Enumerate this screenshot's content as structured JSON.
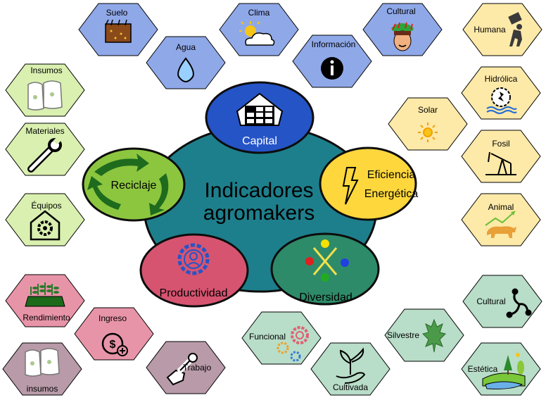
{
  "center": {
    "line1": "Indicadores",
    "line2": "agromakers",
    "color": "#1e7f8c"
  },
  "pillars": {
    "capital": {
      "label": "Capital",
      "color": "#2554c7",
      "icon": "warehouse-icon"
    },
    "eficiencia": {
      "line1": "Eficiencia",
      "line2": "Energética",
      "color": "#fdd73c",
      "icon": "lightning-icon"
    },
    "diversidad": {
      "label": "Diversidad",
      "color": "#2e8b6a",
      "icon": "diversity-icon"
    },
    "productividad": {
      "label": "Productividad",
      "color": "#d65470",
      "icon": "gear-person-icon"
    },
    "reciclaje": {
      "label": "Reciclaje",
      "color": "#8cc63f",
      "icon": "recycle-arrows-icon"
    }
  },
  "capital_items": [
    {
      "label": "Suelo",
      "icon": "soil-icon"
    },
    {
      "label": "Agua",
      "icon": "water-drop-icon"
    },
    {
      "label": "Clima",
      "icon": "sun-cloud-icon"
    },
    {
      "label": "Información",
      "icon": "info-icon"
    },
    {
      "label": "Cultural",
      "icon": "indigenous-face-icon"
    }
  ],
  "energy_items": [
    {
      "label": "Humana",
      "icon": "person-carrying-icon"
    },
    {
      "label": "Hidrólica",
      "icon": "water-wheel-icon"
    },
    {
      "label": "Solar",
      "icon": "sun-icon"
    },
    {
      "label": "Fosil",
      "icon": "oil-pump-icon"
    },
    {
      "label": "Animal",
      "icon": "bull-icon"
    }
  ],
  "recycling_items": [
    {
      "label": "Insumos",
      "icon": "sacks-icon"
    },
    {
      "label": "Materiales",
      "icon": "wrench-icon"
    },
    {
      "label": "Équipos",
      "icon": "gear-house-icon"
    }
  ],
  "productivity_items": [
    {
      "label": "Rendimiento",
      "icon": "crop-field-icon"
    },
    {
      "label": "Ingreso",
      "icon": "money-icon"
    },
    {
      "label": "insumos",
      "icon": "sacks-icon"
    },
    {
      "label": "Trabajo",
      "icon": "hand-wrench-icon"
    }
  ],
  "diversity_items": [
    {
      "label": "Funcional",
      "icon": "gears-icon"
    },
    {
      "label": "Cultivada",
      "icon": "sprout-hand-icon"
    },
    {
      "label": "Silvestre",
      "icon": "maple-leaf-icon"
    },
    {
      "label": "Cultural",
      "icon": "triskelion-icon"
    },
    {
      "label": "Estética",
      "icon": "landscape-icon"
    }
  ],
  "colors": {
    "capital_hex": "#8fa8e8",
    "energy_hex": "#fde9a8",
    "recycling_hex": "#d9f0b0",
    "productivity_hex": "#e894a8",
    "productivity_hex_alt": "#b89aa8",
    "diversity_hex": "#b8ddc8"
  }
}
